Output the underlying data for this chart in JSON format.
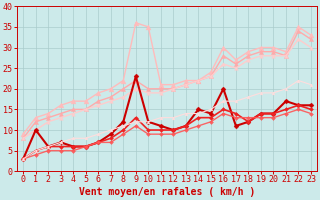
{
  "xlabel": "Vent moyen/en rafales ( km/h )",
  "xlim": [
    -0.5,
    23.5
  ],
  "ylim": [
    0,
    40
  ],
  "xticks": [
    0,
    1,
    2,
    3,
    4,
    5,
    6,
    7,
    8,
    9,
    10,
    11,
    12,
    13,
    14,
    15,
    16,
    17,
    18,
    19,
    20,
    21,
    22,
    23
  ],
  "yticks": [
    0,
    5,
    10,
    15,
    20,
    25,
    30,
    35,
    40
  ],
  "bg_color": "#cceaea",
  "grid_color": "#aacccc",
  "lines": [
    {
      "x": [
        0,
        1,
        2,
        3,
        4,
        5,
        6,
        7,
        8,
        9,
        10,
        11,
        12,
        13,
        14,
        15,
        16,
        17,
        18,
        19,
        20,
        21,
        22,
        23
      ],
      "y": [
        9,
        13,
        14,
        16,
        17,
        17,
        19,
        20,
        22,
        36,
        35,
        21,
        21,
        22,
        22,
        24,
        30,
        27,
        29,
        30,
        30,
        29,
        35,
        33
      ],
      "color": "#ffbbbb",
      "marker": "^",
      "markersize": 3.5,
      "linewidth": 1.0,
      "alpha": 1.0
    },
    {
      "x": [
        0,
        1,
        2,
        3,
        4,
        5,
        6,
        7,
        8,
        9,
        10,
        11,
        12,
        13,
        14,
        15,
        16,
        17,
        18,
        19,
        20,
        21,
        22,
        23
      ],
      "y": [
        8,
        12,
        13,
        14,
        15,
        15,
        17,
        18,
        20,
        22,
        20,
        20,
        20,
        21,
        22,
        23,
        28,
        26,
        28,
        29,
        29,
        28,
        34,
        32
      ],
      "color": "#ffaaaa",
      "marker": "^",
      "markersize": 3.0,
      "linewidth": 1.0,
      "alpha": 1.0
    },
    {
      "x": [
        0,
        1,
        2,
        3,
        4,
        5,
        6,
        7,
        8,
        9,
        10,
        11,
        12,
        13,
        14,
        15,
        16,
        17,
        18,
        19,
        20,
        21,
        22,
        23
      ],
      "y": [
        8,
        10,
        12,
        13,
        14,
        15,
        16,
        17,
        18,
        20,
        19,
        19,
        20,
        21,
        22,
        23,
        26,
        25,
        27,
        28,
        28,
        28,
        32,
        30
      ],
      "color": "#ffcccc",
      "marker": "^",
      "markersize": 2.5,
      "linewidth": 1.0,
      "alpha": 1.0
    },
    {
      "x": [
        0,
        1,
        2,
        3,
        4,
        5,
        6,
        7,
        8,
        9,
        10,
        11,
        12,
        13,
        14,
        15,
        16,
        17,
        18,
        19,
        20,
        21,
        22,
        23
      ],
      "y": [
        3,
        10,
        6,
        7,
        6,
        6,
        7,
        9,
        12,
        23,
        12,
        11,
        10,
        11,
        15,
        14,
        20,
        11,
        12,
        14,
        14,
        17,
        16,
        16
      ],
      "color": "#cc0000",
      "marker": "D",
      "markersize": 2.5,
      "linewidth": 1.5,
      "alpha": 1.0
    },
    {
      "x": [
        0,
        1,
        2,
        3,
        4,
        5,
        6,
        7,
        8,
        9,
        10,
        11,
        12,
        13,
        14,
        15,
        16,
        17,
        18,
        19,
        20,
        21,
        22,
        23
      ],
      "y": [
        3,
        5,
        6,
        6,
        6,
        6,
        7,
        8,
        10,
        13,
        10,
        10,
        10,
        11,
        13,
        13,
        15,
        14,
        12,
        14,
        14,
        15,
        16,
        15
      ],
      "color": "#ee2222",
      "marker": "D",
      "markersize": 2.0,
      "linewidth": 1.2,
      "alpha": 1.0
    },
    {
      "x": [
        0,
        1,
        2,
        3,
        4,
        5,
        6,
        7,
        8,
        9,
        10,
        11,
        12,
        13,
        14,
        15,
        16,
        17,
        18,
        19,
        20,
        21,
        22,
        23
      ],
      "y": [
        3,
        4,
        5,
        5,
        5,
        6,
        7,
        7,
        9,
        11,
        9,
        9,
        9,
        10,
        11,
        12,
        14,
        13,
        13,
        13,
        13,
        14,
        15,
        14
      ],
      "color": "#ff5555",
      "marker": "D",
      "markersize": 2.0,
      "linewidth": 1.0,
      "alpha": 0.9
    },
    {
      "x": [
        0,
        1,
        2,
        3,
        4,
        5,
        6,
        7,
        8,
        9,
        10,
        11,
        12,
        13,
        14,
        15,
        16,
        17,
        18,
        19,
        20,
        21,
        22,
        23
      ],
      "y": [
        3,
        5,
        6,
        7,
        8,
        8,
        9,
        10,
        11,
        12,
        12,
        13,
        13,
        14,
        14,
        15,
        17,
        17,
        18,
        19,
        19,
        20,
        22,
        21
      ],
      "color": "#ffdddd",
      "marker": "^",
      "markersize": 2.0,
      "linewidth": 0.8,
      "alpha": 1.0
    }
  ],
  "tick_color": "#cc0000",
  "xlabel_color": "#cc0000",
  "xlabel_fontsize": 7,
  "tick_fontsize": 6
}
